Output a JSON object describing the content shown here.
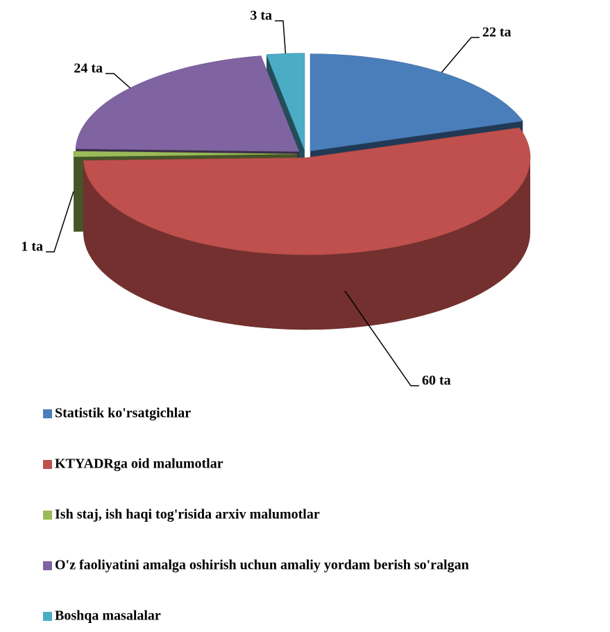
{
  "chart_data": {
    "type": "pie3d",
    "categories": [
      "Statistik ko'rsatgichlar",
      "KTYADRga oid malumotlar",
      "Ish staj, ish haqi tog'risida arxiv malumotlar",
      "O'z faoliyatini amalga oshirish uchun amaliy yordam berish so'ralgan",
      "Boshqa masalalar"
    ],
    "values": [
      22,
      60,
      1,
      24,
      3
    ],
    "value_labels": [
      "22 ta",
      "60 ta",
      "1 ta",
      "24 ta",
      "3 ta"
    ],
    "colors": [
      "#4a7ebb",
      "#c0504d",
      "#9bbb59",
      "#8064a2",
      "#4bacc6"
    ],
    "legend": "bottom"
  }
}
